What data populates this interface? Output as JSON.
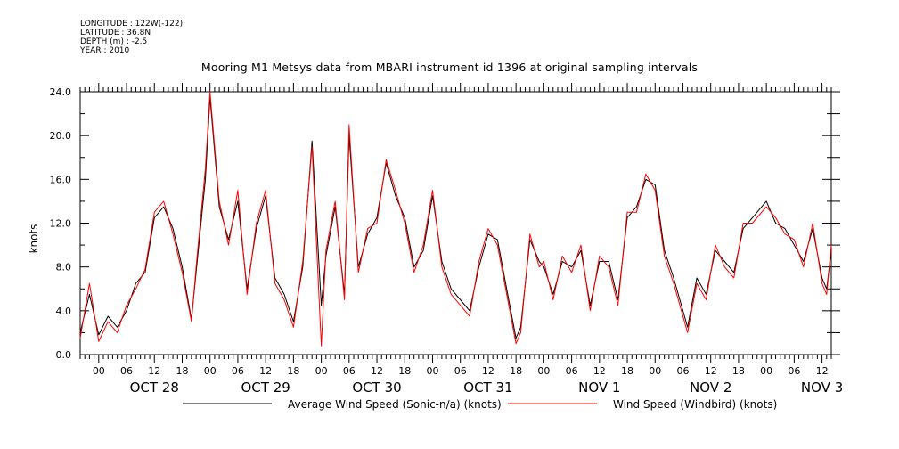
{
  "meta": {
    "longitude": "LONGITUDE : 122W(-122)",
    "latitude": "LATITUDE : 36.8N",
    "depth": "DEPTH (m) : -2.5",
    "year": "YEAR : 2010"
  },
  "colors": {
    "series_avg": "#000000",
    "series_windbird": "#ff0000",
    "axis": "#000000"
  },
  "chart_data": {
    "type": "line",
    "title": "Mooring M1 Metsys data from MBARI instrument id 1396 at original sampling intervals",
    "ylabel": "knots",
    "xlabel": "",
    "ylim": [
      0,
      24.0
    ],
    "y_ticks": [
      "0.0",
      "4.0",
      "8.0",
      "12.0",
      "16.0",
      "20.0",
      "24.0"
    ],
    "x_range_hours": [
      "Oct 27 2010 20:00",
      "Nov 3 2010 14:00"
    ],
    "hour_tick_labels": [
      "00",
      "06",
      "12",
      "18"
    ],
    "day_labels": [
      "OCT 28",
      "OCT 29",
      "OCT 30",
      "OCT 31",
      "NOV  1",
      "NOV  2",
      "NOV  3"
    ],
    "legend_placement": "bottom",
    "grid": false,
    "series": [
      {
        "name": "Average Wind Speed (Sonic-n/a) (knots)",
        "x": [
          "10-27 20:00",
          "10-27 22:00",
          "10-28 00:00",
          "10-28 02:00",
          "10-28 04:00",
          "10-28 06:00",
          "10-28 08:00",
          "10-28 10:00",
          "10-28 12:00",
          "10-28 14:00",
          "10-28 16:00",
          "10-28 18:00",
          "10-28 20:00",
          "10-28 21:00",
          "10-28 23:00",
          "10-29 00:00",
          "10-29 02:00",
          "10-29 04:00",
          "10-29 06:00",
          "10-29 08:00",
          "10-29 10:00",
          "10-29 12:00",
          "10-29 14:00",
          "10-29 16:00",
          "10-29 18:00",
          "10-29 20:00",
          "10-29 22:00",
          "10-30 00:00",
          "10-30 01:00",
          "10-30 03:00",
          "10-30 05:00",
          "10-30 06:00",
          "10-30 08:00",
          "10-30 10:00",
          "10-30 12:00",
          "10-30 14:00",
          "10-30 16:00",
          "10-30 18:00",
          "10-30 20:00",
          "10-30 22:00",
          "10-31 00:00",
          "10-31 02:00",
          "10-31 04:00",
          "10-31 06:00",
          "10-31 08:00",
          "10-31 10:00",
          "10-31 12:00",
          "10-31 14:00",
          "10-31 16:00",
          "10-31 18:00",
          "10-31 19:00",
          "10-31 21:00",
          "10-31 23:00",
          "11-01 00:00",
          "11-01 02:00",
          "11-01 04:00",
          "11-01 06:00",
          "11-01 08:00",
          "11-01 10:00",
          "11-01 12:00",
          "11-01 14:00",
          "11-01 16:00",
          "11-01 18:00",
          "11-01 20:00",
          "11-01 22:00",
          "11-02 00:00",
          "11-02 02:00",
          "11-02 04:00",
          "11-02 06:00",
          "11-02 07:00",
          "11-02 09:00",
          "11-02 11:00",
          "11-02 13:00",
          "11-02 15:00",
          "11-02 17:00",
          "11-02 19:00",
          "11-02 21:00",
          "11-03 00:00",
          "11-03 02:00",
          "11-03 04:00",
          "11-03 06:00",
          "11-03 08:00",
          "11-03 10:00",
          "11-03 12:00",
          "11-03 13:00",
          "11-03 14:00"
        ],
        "values": [
          2.0,
          5.5,
          1.8,
          3.5,
          2.5,
          4.0,
          6.5,
          7.5,
          12.5,
          13.5,
          11.5,
          8.0,
          3.2,
          7.5,
          16.0,
          23.5,
          13.5,
          10.5,
          14.0,
          6.0,
          11.5,
          14.5,
          7.0,
          5.5,
          3.0,
          8.0,
          19.5,
          4.5,
          9.0,
          13.5,
          5.5,
          20.0,
          8.0,
          11.0,
          12.5,
          17.5,
          14.5,
          12.5,
          8.0,
          9.5,
          14.5,
          8.5,
          6.0,
          5.0,
          4.0,
          8.0,
          11.0,
          10.5,
          6.0,
          1.5,
          2.5,
          10.5,
          8.5,
          8.0,
          5.5,
          8.5,
          8.0,
          9.5,
          4.5,
          8.5,
          8.5,
          5.0,
          12.5,
          13.5,
          16.0,
          15.5,
          9.5,
          7.0,
          4.0,
          2.5,
          7.0,
          5.5,
          9.5,
          8.5,
          7.5,
          11.5,
          12.5,
          14.0,
          12.0,
          11.5,
          10.0,
          8.5,
          11.5,
          7.0,
          6.0,
          9.5
        ]
      },
      {
        "name": "Wind Speed (Windbird) (knots)",
        "x": [
          "10-27 20:00",
          "10-27 22:00",
          "10-28 00:00",
          "10-28 02:00",
          "10-28 04:00",
          "10-28 06:00",
          "10-28 08:00",
          "10-28 10:00",
          "10-28 12:00",
          "10-28 14:00",
          "10-28 16:00",
          "10-28 18:00",
          "10-28 20:00",
          "10-28 21:00",
          "10-28 23:00",
          "10-29 00:00",
          "10-29 02:00",
          "10-29 04:00",
          "10-29 06:00",
          "10-29 08:00",
          "10-29 10:00",
          "10-29 12:00",
          "10-29 14:00",
          "10-29 16:00",
          "10-29 18:00",
          "10-29 20:00",
          "10-29 22:00",
          "10-30 00:00",
          "10-30 01:00",
          "10-30 03:00",
          "10-30 05:00",
          "10-30 06:00",
          "10-30 08:00",
          "10-30 10:00",
          "10-30 12:00",
          "10-30 14:00",
          "10-30 16:00",
          "10-30 18:00",
          "10-30 20:00",
          "10-30 22:00",
          "10-31 00:00",
          "10-31 02:00",
          "10-31 04:00",
          "10-31 06:00",
          "10-31 08:00",
          "10-31 10:00",
          "10-31 12:00",
          "10-31 14:00",
          "10-31 16:00",
          "10-31 18:00",
          "10-31 19:00",
          "10-31 21:00",
          "10-31 23:00",
          "11-01 00:00",
          "11-01 02:00",
          "11-01 04:00",
          "11-01 06:00",
          "11-01 08:00",
          "11-01 10:00",
          "11-01 12:00",
          "11-01 14:00",
          "11-01 16:00",
          "11-01 18:00",
          "11-01 20:00",
          "11-01 22:00",
          "11-02 00:00",
          "11-02 02:00",
          "11-02 04:00",
          "11-02 06:00",
          "11-02 07:00",
          "11-02 09:00",
          "11-02 11:00",
          "11-02 13:00",
          "11-02 15:00",
          "11-02 17:00",
          "11-02 19:00",
          "11-02 21:00",
          "11-03 00:00",
          "11-03 02:00",
          "11-03 04:00",
          "11-03 06:00",
          "11-03 08:00",
          "11-03 10:00",
          "11-03 12:00",
          "11-03 13:00",
          "11-03 14:00"
        ],
        "values": [
          1.5,
          6.5,
          1.2,
          3.0,
          2.0,
          4.5,
          6.0,
          7.8,
          13.0,
          14.0,
          11.0,
          7.5,
          3.0,
          8.0,
          17.0,
          24.0,
          14.0,
          10.0,
          15.0,
          5.5,
          12.0,
          15.0,
          6.5,
          5.0,
          2.5,
          8.5,
          19.0,
          0.8,
          9.5,
          14.0,
          5.0,
          21.0,
          7.5,
          11.5,
          12.0,
          17.8,
          15.0,
          12.0,
          7.5,
          10.0,
          15.0,
          8.0,
          5.5,
          4.5,
          3.5,
          8.5,
          11.5,
          10.0,
          5.5,
          1.0,
          2.0,
          11.0,
          8.0,
          8.5,
          5.0,
          9.0,
          7.5,
          10.0,
          4.0,
          9.0,
          8.0,
          4.5,
          13.0,
          13.0,
          16.5,
          15.0,
          9.0,
          6.5,
          3.5,
          2.0,
          6.5,
          5.0,
          10.0,
          8.0,
          7.0,
          12.0,
          12.0,
          13.5,
          12.5,
          11.0,
          10.5,
          8.0,
          12.0,
          6.5,
          5.5,
          10.0
        ]
      }
    ]
  }
}
